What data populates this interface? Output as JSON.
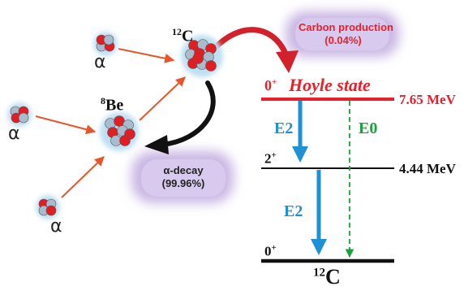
{
  "nuclei": {
    "alpha_symbol": "α",
    "be8": {
      "mass": "8",
      "symbol": "Be"
    },
    "c12_top": {
      "mass": "12",
      "symbol": "C"
    },
    "c12_bottom": {
      "mass": "12",
      "symbol": "C"
    }
  },
  "bubbles": {
    "carbon": {
      "line1": "Carbon production",
      "line2": "(0.04%)"
    },
    "decay": {
      "line1": "α-decay",
      "line2": "(99.96%)"
    }
  },
  "levels": {
    "hoyle": {
      "spin": "0",
      "parity": "+",
      "name": "Hoyle state",
      "energy": "7.65 MeV"
    },
    "first_excited": {
      "spin": "2",
      "parity": "+",
      "energy": "4.44 MeV"
    },
    "ground": {
      "spin": "0",
      "parity": "+"
    }
  },
  "transitions": {
    "e2_upper": "E2",
    "e0": "E0",
    "e2_lower": "E2"
  },
  "colors": {
    "hoyle_level": "#e8202a",
    "e2": "#1e90d6",
    "e0": "#1aa33a",
    "level_black": "#111111",
    "bubble": "#c9b6e3",
    "proton": "#e01e24",
    "neutron": "#a8bccd"
  }
}
